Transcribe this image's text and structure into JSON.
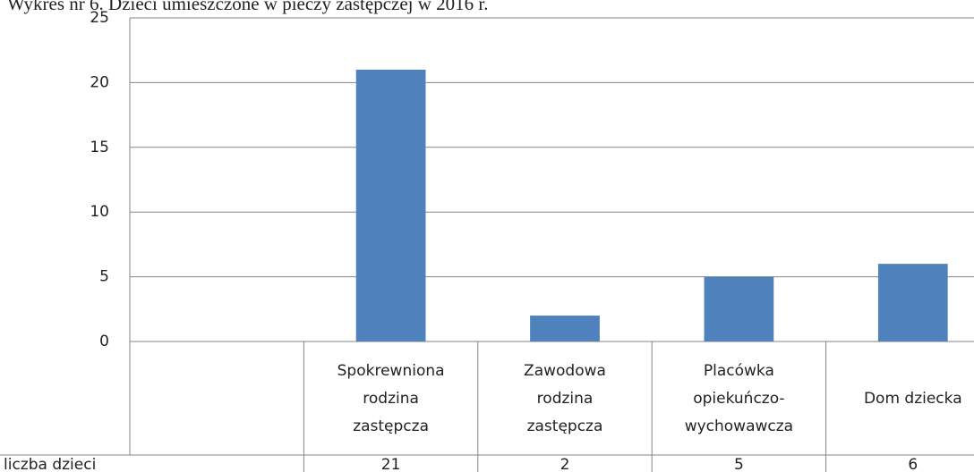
{
  "chart_data": {
    "type": "bar",
    "title": "Wykres nr 6. Dzieci umieszczone w pieczy zastępczej w 2016 r.",
    "categories": [
      null,
      [
        "Spokrewniona",
        "rodzina",
        "zastępcza"
      ],
      [
        "Zawodowa",
        "rodzina",
        "zastępcza"
      ],
      [
        "Placówka",
        "opiekuńczo-",
        "wychowawcza"
      ],
      [
        "Dom dziecka"
      ]
    ],
    "series": [
      {
        "name": "liczba dzieci",
        "color": "#4f81bd",
        "values": [
          null,
          21,
          2,
          5,
          6
        ]
      }
    ],
    "ylim": [
      0,
      25
    ],
    "yticks": [
      0,
      5,
      10,
      15,
      20,
      25
    ],
    "grid": true,
    "data_table": true
  }
}
